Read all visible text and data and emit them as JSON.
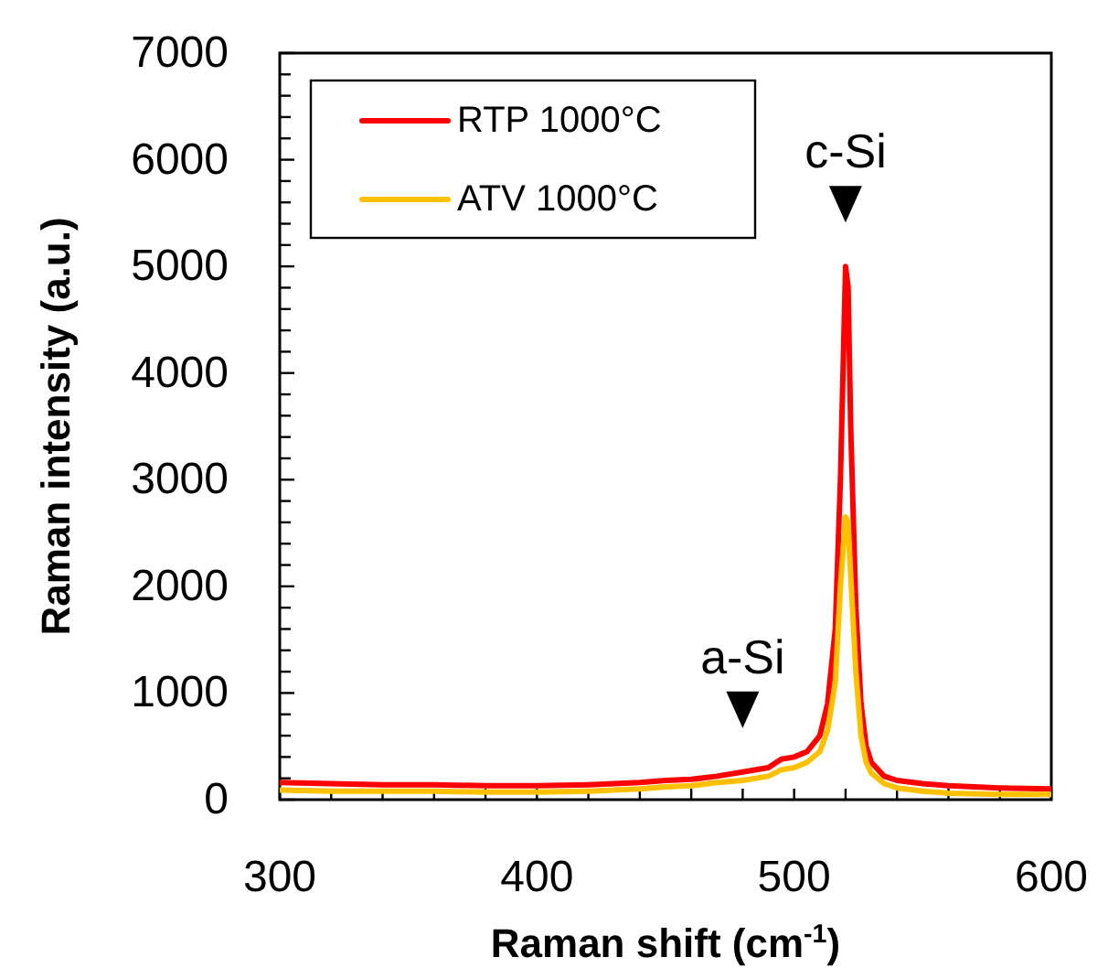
{
  "chart_data": {
    "type": "line",
    "xlabel": "Raman shift (cm$^{-1}$)",
    "ylabel": "Raman intensity (a.u.)",
    "xlim": [
      300,
      600
    ],
    "xticks": [
      300,
      {
        "value": 320,
        "label": null
      },
      {
        "value": 340,
        "label": null
      },
      {
        "value": 360,
        "label": null
      },
      {
        "value": 380,
        "label": null
      },
      400,
      {
        "value": 420,
        "label": null
      },
      {
        "value": 440,
        "label": null
      },
      {
        "value": 460,
        "label": null
      },
      {
        "value": 480,
        "label": null
      },
      500,
      {
        "value": 520,
        "label": null
      },
      {
        "value": 540,
        "label": null
      },
      {
        "value": 560,
        "label": null
      },
      {
        "value": 580,
        "label": null
      },
      600
    ],
    "ylim": [
      0,
      7000
    ],
    "yticks": [
      0,
      {
        "value": 200,
        "label": null
      },
      {
        "value": 400,
        "label": null
      },
      {
        "value": 600,
        "label": null
      },
      {
        "value": 800,
        "label": null
      },
      1000,
      {
        "value": 1200,
        "label": null
      },
      {
        "value": 1400,
        "label": null
      },
      {
        "value": 1600,
        "label": null
      },
      {
        "value": 1800,
        "label": null
      },
      2000,
      {
        "value": 2200,
        "label": null
      },
      {
        "value": 2400,
        "label": null
      },
      {
        "value": 2600,
        "label": null
      },
      {
        "value": 2800,
        "label": null
      },
      3000,
      {
        "value": 3200,
        "label": null
      },
      {
        "value": 3400,
        "label": null
      },
      {
        "value": 3600,
        "label": null
      },
      {
        "value": 3800,
        "label": null
      },
      4000,
      {
        "value": 4200,
        "label": null
      },
      {
        "value": 4400,
        "label": null
      },
      {
        "value": 4600,
        "label": null
      },
      {
        "value": 4800,
        "label": null
      },
      5000,
      {
        "value": 5200,
        "label": null
      },
      {
        "value": 5400,
        "label": null
      },
      {
        "value": 5600,
        "label": null
      },
      {
        "value": 5800,
        "label": null
      },
      6000,
      {
        "value": 6200,
        "label": null
      },
      {
        "value": 6400,
        "label": null
      },
      {
        "value": 6600,
        "label": null
      },
      {
        "value": 6800,
        "label": null
      },
      7000
    ],
    "legend": "top left",
    "grid": false,
    "line_style": "solid",
    "annotations": [
      {
        "text": "c-Si",
        "x": 520,
        "y": 5000
      },
      {
        "text": "a-Si",
        "x": 480,
        "y": 260
      }
    ],
    "x": [
      300,
      320,
      340,
      360,
      380,
      400,
      420,
      440,
      450,
      460,
      470,
      480,
      490,
      495,
      500,
      505,
      510,
      513,
      516,
      518,
      520,
      521,
      522,
      524,
      526,
      528,
      530,
      535,
      540,
      550,
      560,
      580,
      600
    ],
    "series": [
      {
        "name": "RTP 1000°C",
        "color": "#ff0000",
        "values": [
          160,
          150,
          140,
          140,
          130,
          130,
          140,
          160,
          180,
          190,
          220,
          260,
          300,
          380,
          400,
          450,
          600,
          900,
          1600,
          3000,
          5000,
          4800,
          3500,
          1800,
          900,
          500,
          350,
          220,
          180,
          150,
          130,
          110,
          100
        ]
      },
      {
        "name": "ATV 1000°C",
        "color": "#ffc000",
        "values": [
          90,
          80,
          80,
          80,
          70,
          70,
          80,
          100,
          120,
          130,
          160,
          180,
          220,
          280,
          300,
          350,
          450,
          650,
          1100,
          2000,
          2650,
          2600,
          2100,
          1200,
          600,
          350,
          250,
          150,
          110,
          80,
          60,
          50,
          50
        ]
      }
    ]
  }
}
